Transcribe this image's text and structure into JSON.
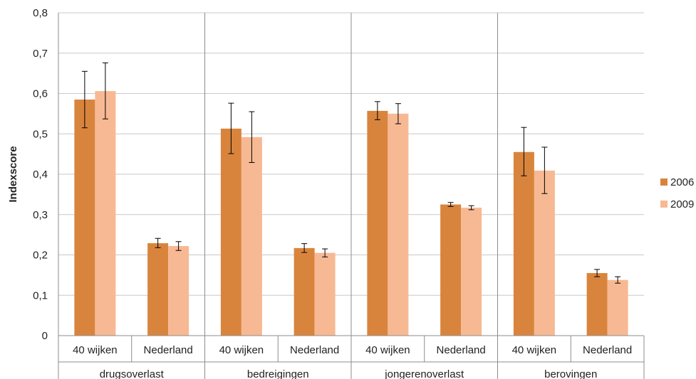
{
  "chart_data": {
    "type": "bar",
    "ylabel": "Indexscore",
    "ylim": [
      0,
      0.8
    ],
    "yticks": [
      "0",
      "0,1",
      "0,2",
      "0,3",
      "0,4",
      "0,5",
      "0,6",
      "0,7",
      "0,8"
    ],
    "grid": true,
    "legend_position": "right",
    "groups": [
      "drugsoverlast",
      "bedreigingen",
      "jongerenoverlast",
      "berovingen"
    ],
    "subcategories": [
      "40 wijken",
      "Nederland"
    ],
    "series": [
      {
        "name": "2006",
        "color": "#d9843d",
        "values": [
          0.585,
          0.229,
          0.513,
          0.217,
          0.557,
          0.325,
          0.455,
          0.155
        ],
        "error_low": [
          0.515,
          0.218,
          0.451,
          0.206,
          0.535,
          0.32,
          0.396,
          0.146
        ],
        "error_high": [
          0.655,
          0.241,
          0.576,
          0.228,
          0.58,
          0.33,
          0.516,
          0.164
        ]
      },
      {
        "name": "2009",
        "color": "#f7b993",
        "values": [
          0.606,
          0.222,
          0.492,
          0.205,
          0.55,
          0.317,
          0.409,
          0.138
        ],
        "error_low": [
          0.537,
          0.211,
          0.429,
          0.195,
          0.525,
          0.312,
          0.352,
          0.13
        ],
        "error_high": [
          0.676,
          0.233,
          0.555,
          0.215,
          0.575,
          0.322,
          0.467,
          0.146
        ]
      }
    ]
  }
}
